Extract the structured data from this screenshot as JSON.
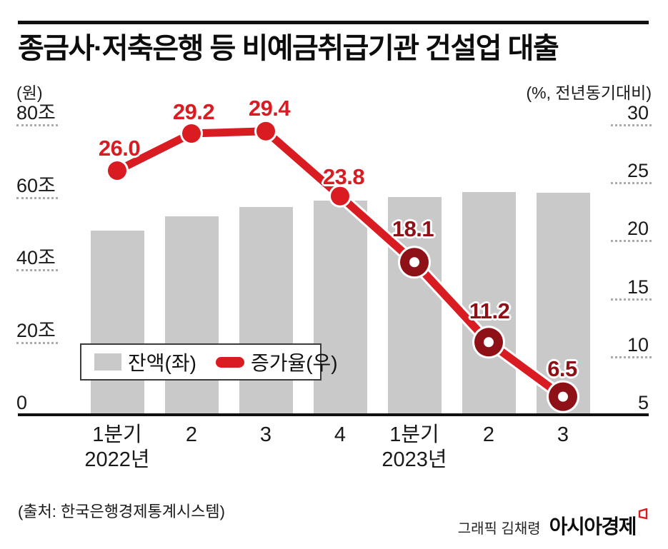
{
  "header": {
    "title": "종금사·저축은행 등 비예금취급기관 건설업 대출"
  },
  "chart_data": {
    "type": "bar+line combo",
    "categories": [
      "1분기 2022년",
      "2",
      "3",
      "4",
      "1분기 2023년",
      "2",
      "3"
    ],
    "series": [
      {
        "name": "잔액(좌)",
        "type": "bar",
        "axis": "left",
        "unit": "조 원",
        "values": [
          50.6,
          54.6,
          57.2,
          58.9,
          59.9,
          61.3,
          61.1
        ]
      },
      {
        "name": "증가율(우)",
        "type": "line",
        "axis": "right",
        "unit": "%",
        "values": [
          26.0,
          29.2,
          29.4,
          23.8,
          18.1,
          11.2,
          6.5
        ],
        "labels": [
          "26.0",
          "29.2",
          "29.4",
          "23.8",
          "18.1",
          "11.2",
          "6.5"
        ],
        "marker_styles": [
          "solid",
          "solid",
          "solid",
          "solid",
          "ring",
          "ring",
          "ring"
        ]
      }
    ],
    "left_axis": {
      "unit_label": "(원)",
      "range": [
        0,
        80
      ],
      "ticks": [
        {
          "label": "80조",
          "value": 80
        },
        {
          "label": "60조",
          "value": 60
        },
        {
          "label": "40조",
          "value": 40
        },
        {
          "label": "20조",
          "value": 20
        },
        {
          "label": "0",
          "value": 0
        }
      ]
    },
    "right_axis": {
      "unit_label": "(%, 전년동기대비)",
      "range": [
        5,
        30
      ],
      "ticks": [
        {
          "label": "30",
          "value": 30
        },
        {
          "label": "25",
          "value": 25
        },
        {
          "label": "20",
          "value": 20
        },
        {
          "label": "15",
          "value": 15
        },
        {
          "label": "10",
          "value": 10
        },
        {
          "label": "5",
          "value": 5
        }
      ]
    },
    "x_ticks": [
      {
        "line1": "1분기",
        "line2": "2022년"
      },
      {
        "line1": "2"
      },
      {
        "line1": "3"
      },
      {
        "line1": "4"
      },
      {
        "line1": "1분기",
        "line2": "2023년"
      },
      {
        "line1": "2"
      },
      {
        "line1": "3"
      }
    ],
    "legend": [
      {
        "label": "잔액(좌)",
        "swatch": "bar"
      },
      {
        "label": "증가율(우)",
        "swatch": "line"
      }
    ],
    "grid": "short dotted underlines beneath axis tick labels only",
    "legend_position": "inside-bottom-left"
  },
  "colors": {
    "line_red": "#d91c22",
    "marker_dark_red": "#8e1117",
    "bar_gray": "#c9c9c9",
    "text": "#111111"
  },
  "footer": {
    "source": "(출처: 한국은행경제통계시스템)",
    "credit": "그래픽 김채령",
    "brand": "아시아경제"
  }
}
